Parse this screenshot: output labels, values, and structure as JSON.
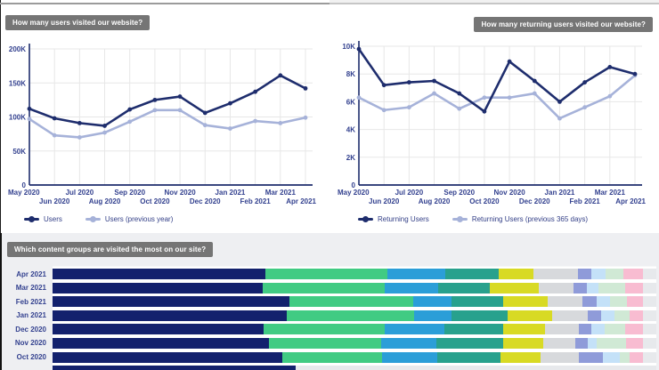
{
  "titles": {
    "users": "How many users visited our website?",
    "returning": "How many returning users visited our website?",
    "content_groups": "Which content groups are visited the most on our site?"
  },
  "colors": {
    "line_primary": "#1e2d6d",
    "line_secondary": "#a6b2d9",
    "axis_text": "#33418f",
    "pill_bg": "#757575",
    "panel_bg": "#eeeff2",
    "grid": "#e7e7e7"
  },
  "chart_data": [
    {
      "id": "users",
      "type": "line",
      "title": "How many users visited our website?",
      "x": [
        "May 2020",
        "Jun 2020",
        "Jul 2020",
        "Aug 2020",
        "Sep 2020",
        "Oct 2020",
        "Nov 2020",
        "Dec 2020",
        "Jan 2021",
        "Feb 2021",
        "Mar 2021",
        "Apr 2021"
      ],
      "y_ticks": [
        "200K",
        "150K",
        "100K",
        "50K",
        "0"
      ],
      "ylim": [
        0,
        200000
      ],
      "grid": true,
      "legend_position": "bottom",
      "series": [
        {
          "name": "Users",
          "color": "#1e2d6d",
          "values": [
            112000,
            98000,
            91000,
            87000,
            111000,
            125000,
            130000,
            106000,
            120000,
            137000,
            161000,
            142000
          ]
        },
        {
          "name": "Users (previous year)",
          "color": "#a6b2d9",
          "values": [
            97000,
            73000,
            70000,
            77000,
            93000,
            110000,
            110000,
            88000,
            83000,
            94000,
            91000,
            99000
          ]
        }
      ]
    },
    {
      "id": "returning-users",
      "type": "line",
      "title": "How many returning users visited our website?",
      "x": [
        "May 2020",
        "Jun 2020",
        "Jul 2020",
        "Aug 2020",
        "Sep 2020",
        "Oct 2020",
        "Nov 2020",
        "Dec 2020",
        "Jan 2021",
        "Feb 2021",
        "Mar 2021",
        "Apr 2021"
      ],
      "y_ticks": [
        "10K",
        "8K",
        "6K",
        "4K",
        "2K",
        "0"
      ],
      "ylim": [
        0,
        10000
      ],
      "grid": true,
      "legend_position": "bottom",
      "series": [
        {
          "name": "Returning Users",
          "color": "#1e2d6d",
          "values": [
            9800,
            7200,
            7400,
            7500,
            6600,
            5300,
            8900,
            7500,
            6000,
            7400,
            8500,
            8000
          ]
        },
        {
          "name": "Returning Users (previous 365 days)",
          "color": "#a6b2d9",
          "values": [
            6300,
            5400,
            5600,
            6600,
            5500,
            6300,
            6300,
            6600,
            4800,
            5600,
            6400,
            7900
          ]
        }
      ]
    },
    {
      "id": "content-groups",
      "type": "bar",
      "variant": "horizontal-stacked-100",
      "title": "Which content groups are visited the most on our site?",
      "segment_colors": [
        "#13216d",
        "#41cb83",
        "#2b9ed8",
        "#28a18d",
        "#d8da24",
        "#d7d9dc",
        "#8f9bd9",
        "#c4e1f8",
        "#d0e9d5",
        "#f8bcd1"
      ],
      "rows": [
        {
          "label": "Apr 2021",
          "values": [
            36.0,
            20.7,
            9.8,
            9.0,
            6.0,
            7.5,
            2.3,
            2.4,
            3.0,
            3.3
          ]
        },
        {
          "label": "Mar 2021",
          "values": [
            35.6,
            20.7,
            9.0,
            8.7,
            8.3,
            5.9,
            2.3,
            2.0,
            4.5,
            3.0
          ]
        },
        {
          "label": "Feb 2021",
          "values": [
            40.1,
            21.0,
            6.5,
            8.7,
            7.5,
            6.0,
            2.3,
            2.3,
            2.9,
            2.7
          ]
        },
        {
          "label": "Jan 2021",
          "values": [
            39.7,
            21.6,
            6.3,
            9.5,
            7.5,
            6.0,
            2.3,
            2.3,
            2.6,
            2.2
          ]
        },
        {
          "label": "Dec 2020",
          "values": [
            35.7,
            20.5,
            10.1,
            10.0,
            7.1,
            5.7,
            2.1,
            2.3,
            3.5,
            3.0
          ]
        },
        {
          "label": "Nov 2020",
          "values": [
            36.7,
            18.9,
            9.4,
            11.3,
            6.8,
            5.4,
            2.1,
            1.5,
            5.0,
            2.9
          ]
        },
        {
          "label": "Oct 2020",
          "values": [
            38.9,
            16.9,
            9.4,
            10.6,
            6.8,
            6.5,
            4.1,
            2.9,
            1.7,
            2.2
          ]
        }
      ],
      "partial_row": {
        "label": "",
        "values": [
          41.2
        ]
      }
    }
  ]
}
